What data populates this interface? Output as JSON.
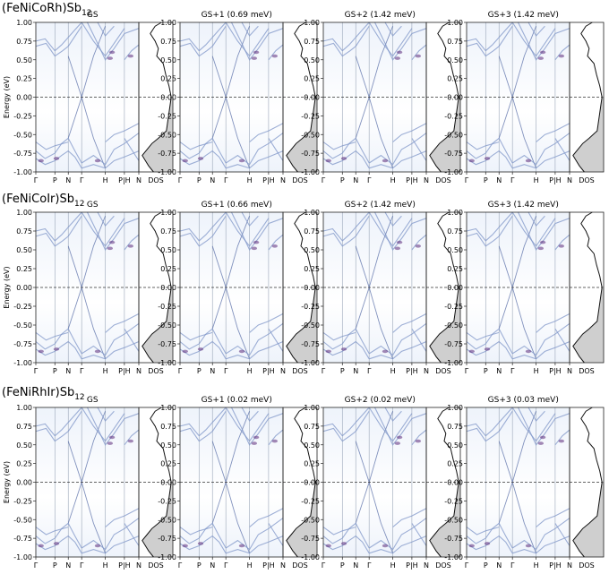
{
  "chart_data": {
    "type": "band-structure-grid",
    "ylabel": "Energy (eV)",
    "ylim": [
      -1.0,
      1.0
    ],
    "yticks": [
      "1.00",
      "0.75",
      "0.50",
      "0.25",
      "0.00",
      "-0.25",
      "-0.50",
      "-0.75",
      "-1.00"
    ],
    "ytick_values": [
      1.0,
      0.75,
      0.5,
      0.25,
      0.0,
      -0.25,
      -0.5,
      -0.75,
      -1.0
    ],
    "kpath": [
      "Γ",
      "P",
      "N",
      "Γ",
      "H",
      "P|H",
      "N"
    ],
    "dos_label": "DOS",
    "fermi_level": 0.0,
    "rows": [
      {
        "formula": "(FeNiCoRh)Sb",
        "subscript": "12",
        "panels": [
          "GS",
          "GS+1 (0.69 meV)",
          "GS+2 (1.42 meV)",
          "GS+3 (1.42 meV)"
        ]
      },
      {
        "formula": "(FeNiCoIr)Sb",
        "subscript": "12",
        "panels": [
          "GS",
          "GS+1 (0.66 meV)",
          "GS+2 (1.42 meV)",
          "GS+3 (1.42 meV)"
        ]
      },
      {
        "formula": "(FeNiRhIr)Sb",
        "subscript": "12",
        "panels": [
          "GS",
          "GS+1 (0.02 meV)",
          "GS+2 (0.02 meV)",
          "GS+3 (0.03 meV)"
        ]
      }
    ]
  }
}
